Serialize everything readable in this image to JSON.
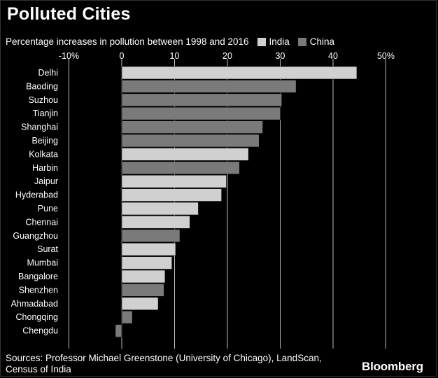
{
  "title": "Polluted Cities",
  "subtitle": "Percentage increases in pollution between 1998 and 2016",
  "legend": [
    {
      "name": "India",
      "color": "#d0d0d0"
    },
    {
      "name": "China",
      "color": "#7a7a7a"
    }
  ],
  "source": "Sources: Professor Michael Greenstone (University of Chicago), LandScan, Census of India",
  "brand": "Bloomberg",
  "chart_data": {
    "type": "bar",
    "orientation": "horizontal",
    "title": "Polluted Cities",
    "subtitle": "Percentage increases in pollution between 1998 and 2016",
    "xlim": [
      -10,
      50
    ],
    "xticks": [
      -10,
      0,
      10,
      20,
      30,
      40,
      50
    ],
    "xtick_labels": [
      "-10%",
      "0",
      "10",
      "20",
      "30",
      "40",
      "50%"
    ],
    "grid": "vertical lines",
    "legend_position": "top",
    "colors": {
      "India": "#d0d0d0",
      "China": "#7a7a7a"
    },
    "categories": [
      "Delhi",
      "Baoding",
      "Suzhou",
      "Tianjin",
      "Shanghai",
      "Beijing",
      "Kolkata",
      "Harbin",
      "Jaipur",
      "Hyderabad",
      "Pune",
      "Chennai",
      "Guangzhou",
      "Surat",
      "Mumbai",
      "Bangalore",
      "Shenzhen",
      "Ahmadabad",
      "Chongqing",
      "Chengdu"
    ],
    "countries": [
      "India",
      "China",
      "China",
      "China",
      "China",
      "China",
      "India",
      "China",
      "India",
      "India",
      "India",
      "India",
      "China",
      "India",
      "India",
      "India",
      "China",
      "India",
      "China",
      "China"
    ],
    "values": [
      44.5,
      33,
      30.3,
      30,
      26.7,
      26,
      24,
      22.3,
      19.8,
      18.9,
      14.5,
      12.9,
      11,
      10.2,
      9.5,
      8.2,
      8,
      6.9,
      2,
      -1.2
    ]
  }
}
